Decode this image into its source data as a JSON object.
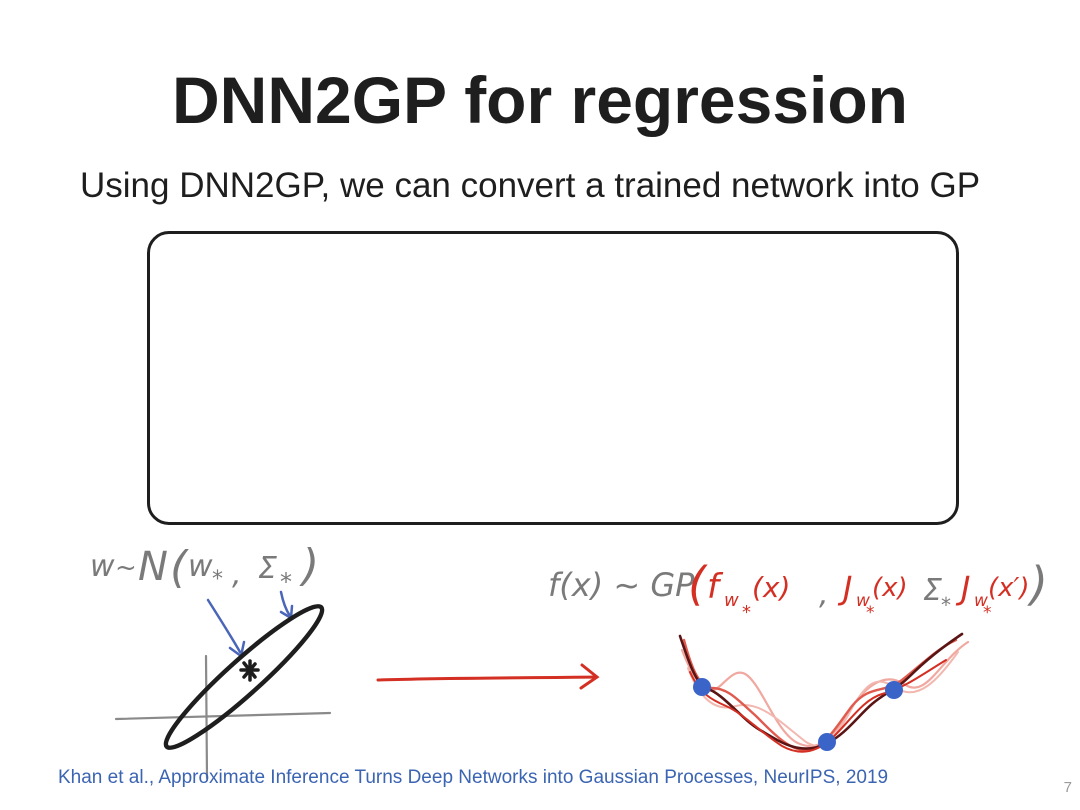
{
  "slide": {
    "title": "DNN2GP for regression",
    "subtitle": "Using DNN2GP, we can convert a trained network into GP",
    "page_number": "7"
  },
  "citation": "Khan et al., Approximate Inference Turns Deep Networks into Gaussian Processes, NeurIPS, 2019",
  "left_formula": {
    "w": "w",
    "sim": "~",
    "normal": "N",
    "open": "(",
    "mean": "w",
    "mean_sub": "*",
    "comma": ",",
    "cov": "Σ",
    "cov_sub": "*",
    "close": ")"
  },
  "right_formula": {
    "lhs": "f(x) ~ GP",
    "open": "(",
    "mean_fn": "f",
    "mean_sub": "w",
    "mean_subsub": "*",
    "mean_arg": "(x)",
    "comma": ",",
    "jac1": "J",
    "jac1_sub": "w",
    "jac1_subsub": "*",
    "jac1_arg": "(x)",
    "sigma": "Σ",
    "sigma_sub": "*",
    "jac2": "J",
    "jac2_sub": "w",
    "jac2_subsub": "*",
    "jac2_arg": "(x′)",
    "close": ")"
  },
  "colors": {
    "ink": "#1e1e1e",
    "gray_ink": "#7a7a7a",
    "blue_ink": "#4a66b8",
    "red_ink": "#d42f23",
    "dark_red": "#5a1414",
    "pink": "#f0a8a0",
    "point_blue": "#3b64c8",
    "citation": "#3b64b2"
  },
  "icons": {
    "box": "rounded-rectangle",
    "arrow": "right-arrow",
    "points": "data-point-dots"
  }
}
